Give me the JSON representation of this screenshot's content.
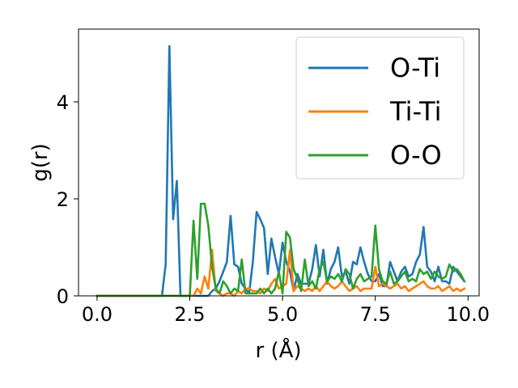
{
  "chart_data": {
    "type": "line",
    "title": "",
    "xlabel": "r (Å)",
    "ylabel": "g(r)",
    "xlim": [
      -0.5,
      10.3
    ],
    "ylim": [
      0,
      5.5
    ],
    "xticks": [
      0.0,
      2.5,
      5.0,
      7.5,
      10.0
    ],
    "xtick_labels": [
      "0.0",
      "2.5",
      "5.0",
      "7.5",
      "10.0"
    ],
    "yticks": [
      0,
      2,
      4
    ],
    "ytick_labels": [
      "0",
      "2",
      "4"
    ],
    "grid": false,
    "legend_position": "top-right",
    "series": [
      {
        "name": "O-Ti",
        "color": "#1f77b4",
        "points": [
          [
            0.0,
            0.0
          ],
          [
            1.75,
            0.0
          ],
          [
            1.85,
            0.65
          ],
          [
            1.95,
            5.15
          ],
          [
            2.05,
            1.58
          ],
          [
            2.15,
            2.37
          ],
          [
            2.25,
            0.0
          ],
          [
            3.0,
            0.0
          ],
          [
            3.1,
            0.1
          ],
          [
            3.2,
            0.15
          ],
          [
            3.3,
            0.3
          ],
          [
            3.4,
            0.5
          ],
          [
            3.5,
            0.7
          ],
          [
            3.6,
            1.65
          ],
          [
            3.7,
            0.65
          ],
          [
            3.8,
            0.6
          ],
          [
            3.9,
            0.25
          ],
          [
            4.0,
            0.15
          ],
          [
            4.1,
            0.05
          ],
          [
            4.2,
            0.7
          ],
          [
            4.3,
            1.73
          ],
          [
            4.4,
            1.58
          ],
          [
            4.5,
            1.4
          ],
          [
            4.6,
            0.45
          ],
          [
            4.7,
            1.18
          ],
          [
            4.8,
            0.8
          ],
          [
            4.9,
            0.45
          ],
          [
            5.0,
            1.1
          ],
          [
            5.1,
            0.7
          ],
          [
            5.2,
            0.5
          ],
          [
            5.3,
            0.1
          ],
          [
            5.4,
            0.45
          ],
          [
            5.5,
            0.25
          ],
          [
            5.6,
            0.25
          ],
          [
            5.7,
            0.25
          ],
          [
            5.8,
            0.55
          ],
          [
            5.9,
            1.05
          ],
          [
            6.0,
            0.4
          ],
          [
            6.1,
            0.95
          ],
          [
            6.2,
            0.25
          ],
          [
            6.3,
            0.55
          ],
          [
            6.4,
            0.7
          ],
          [
            6.5,
            1.0
          ],
          [
            6.6,
            0.4
          ],
          [
            6.7,
            0.5
          ],
          [
            6.8,
            0.25
          ],
          [
            6.9,
            0.7
          ],
          [
            7.0,
            0.65
          ],
          [
            7.1,
            1.0
          ],
          [
            7.2,
            0.7
          ],
          [
            7.3,
            0.45
          ],
          [
            7.4,
            0.3
          ],
          [
            7.5,
            0.3
          ],
          [
            7.6,
            0.45
          ],
          [
            7.7,
            0.2
          ],
          [
            7.8,
            0.2
          ],
          [
            7.9,
            0.7
          ],
          [
            8.0,
            0.5
          ],
          [
            8.1,
            0.3
          ],
          [
            8.2,
            0.5
          ],
          [
            8.3,
            0.6
          ],
          [
            8.4,
            0.4
          ],
          [
            8.5,
            0.45
          ],
          [
            8.6,
            0.7
          ],
          [
            8.7,
            0.85
          ],
          [
            8.8,
            1.42
          ],
          [
            8.9,
            0.6
          ],
          [
            9.0,
            0.5
          ],
          [
            9.1,
            0.3
          ],
          [
            9.2,
            0.6
          ],
          [
            9.3,
            0.3
          ],
          [
            9.4,
            0.3
          ],
          [
            9.5,
            0.25
          ],
          [
            9.6,
            0.6
          ],
          [
            9.7,
            0.5
          ],
          [
            9.8,
            0.4
          ],
          [
            9.9,
            0.3
          ]
        ]
      },
      {
        "name": "Ti-Ti",
        "color": "#ff7f0e",
        "points": [
          [
            0.0,
            0.0
          ],
          [
            2.6,
            0.0
          ],
          [
            2.7,
            0.15
          ],
          [
            2.8,
            0.05
          ],
          [
            2.9,
            0.4
          ],
          [
            3.0,
            0.15
          ],
          [
            3.1,
            0.95
          ],
          [
            3.2,
            0.1
          ],
          [
            3.3,
            0.05
          ],
          [
            3.4,
            0.0
          ],
          [
            3.5,
            0.05
          ],
          [
            3.6,
            0.05
          ],
          [
            3.7,
            0.0
          ],
          [
            3.8,
            0.1
          ],
          [
            3.9,
            0.05
          ],
          [
            4.0,
            0.15
          ],
          [
            4.1,
            0.15
          ],
          [
            4.2,
            0.1
          ],
          [
            4.3,
            0.1
          ],
          [
            4.4,
            0.05
          ],
          [
            4.5,
            0.15
          ],
          [
            4.6,
            0.1
          ],
          [
            4.7,
            0.25
          ],
          [
            4.8,
            0.35
          ],
          [
            4.9,
            0.15
          ],
          [
            5.0,
            0.2
          ],
          [
            5.1,
            0.25
          ],
          [
            5.2,
            0.95
          ],
          [
            5.3,
            0.1
          ],
          [
            5.4,
            0.2
          ],
          [
            5.5,
            0.15
          ],
          [
            5.6,
            0.1
          ],
          [
            5.7,
            0.15
          ],
          [
            5.8,
            0.1
          ],
          [
            5.9,
            0.2
          ],
          [
            6.0,
            0.1
          ],
          [
            6.1,
            0.2
          ],
          [
            6.2,
            0.3
          ],
          [
            6.3,
            0.2
          ],
          [
            6.4,
            0.15
          ],
          [
            6.5,
            0.2
          ],
          [
            6.6,
            0.3
          ],
          [
            6.7,
            0.2
          ],
          [
            6.8,
            0.1
          ],
          [
            6.9,
            0.15
          ],
          [
            7.0,
            0.2
          ],
          [
            7.1,
            0.1
          ],
          [
            7.2,
            0.15
          ],
          [
            7.3,
            0.15
          ],
          [
            7.4,
            0.15
          ],
          [
            7.5,
            0.6
          ],
          [
            7.6,
            0.2
          ],
          [
            7.7,
            0.25
          ],
          [
            7.8,
            0.2
          ],
          [
            7.9,
            0.15
          ],
          [
            8.0,
            0.2
          ],
          [
            8.1,
            0.25
          ],
          [
            8.2,
            0.15
          ],
          [
            8.3,
            0.2
          ],
          [
            8.4,
            0.1
          ],
          [
            8.5,
            0.15
          ],
          [
            8.6,
            0.2
          ],
          [
            8.7,
            0.25
          ],
          [
            8.8,
            0.3
          ],
          [
            8.9,
            0.2
          ],
          [
            9.0,
            0.15
          ],
          [
            9.1,
            0.15
          ],
          [
            9.2,
            0.2
          ],
          [
            9.3,
            0.1
          ],
          [
            9.4,
            0.15
          ],
          [
            9.5,
            0.2
          ],
          [
            9.6,
            0.1
          ],
          [
            9.7,
            0.15
          ],
          [
            9.8,
            0.1
          ],
          [
            9.9,
            0.15
          ]
        ]
      },
      {
        "name": "O-O",
        "color": "#2ca02c",
        "points": [
          [
            0.0,
            0.0
          ],
          [
            2.5,
            0.0
          ],
          [
            2.6,
            1.55
          ],
          [
            2.7,
            0.35
          ],
          [
            2.8,
            1.9
          ],
          [
            2.9,
            1.9
          ],
          [
            3.0,
            1.45
          ],
          [
            3.1,
            0.6
          ],
          [
            3.2,
            0.15
          ],
          [
            3.3,
            0.05
          ],
          [
            3.4,
            0.3
          ],
          [
            3.5,
            0.2
          ],
          [
            3.6,
            0.05
          ],
          [
            3.7,
            0.15
          ],
          [
            3.8,
            0.1
          ],
          [
            3.9,
            0.75
          ],
          [
            4.0,
            0.05
          ],
          [
            4.1,
            0.05
          ],
          [
            4.2,
            0.05
          ],
          [
            4.3,
            0.05
          ],
          [
            4.4,
            0.15
          ],
          [
            4.5,
            0.05
          ],
          [
            4.6,
            0.15
          ],
          [
            4.7,
            0.05
          ],
          [
            4.8,
            0.15
          ],
          [
            4.9,
            0.5
          ],
          [
            5.0,
            0.05
          ],
          [
            5.1,
            1.32
          ],
          [
            5.2,
            1.2
          ],
          [
            5.3,
            0.55
          ],
          [
            5.4,
            0.35
          ],
          [
            5.5,
            0.1
          ],
          [
            5.6,
            0.75
          ],
          [
            5.7,
            0.2
          ],
          [
            5.8,
            0.3
          ],
          [
            5.9,
            0.15
          ],
          [
            6.0,
            0.55
          ],
          [
            6.1,
            0.7
          ],
          [
            6.2,
            0.3
          ],
          [
            6.3,
            0.4
          ],
          [
            6.4,
            0.35
          ],
          [
            6.5,
            0.45
          ],
          [
            6.6,
            0.3
          ],
          [
            6.7,
            0.55
          ],
          [
            6.8,
            0.45
          ],
          [
            6.9,
            0.15
          ],
          [
            7.0,
            0.35
          ],
          [
            7.1,
            0.45
          ],
          [
            7.2,
            0.3
          ],
          [
            7.3,
            0.35
          ],
          [
            7.4,
            0.4
          ],
          [
            7.5,
            1.45
          ],
          [
            7.6,
            0.55
          ],
          [
            7.7,
            0.3
          ],
          [
            7.8,
            0.25
          ],
          [
            7.9,
            0.5
          ],
          [
            8.0,
            0.25
          ],
          [
            8.1,
            0.3
          ],
          [
            8.2,
            0.4
          ],
          [
            8.3,
            0.5
          ],
          [
            8.4,
            0.3
          ],
          [
            8.5,
            0.35
          ],
          [
            8.6,
            0.3
          ],
          [
            8.7,
            0.55
          ],
          [
            8.8,
            0.45
          ],
          [
            8.9,
            0.5
          ],
          [
            9.0,
            0.35
          ],
          [
            9.1,
            0.5
          ],
          [
            9.2,
            0.4
          ],
          [
            9.3,
            0.35
          ],
          [
            9.4,
            0.4
          ],
          [
            9.5,
            0.65
          ],
          [
            9.6,
            0.5
          ],
          [
            9.7,
            0.55
          ],
          [
            9.8,
            0.45
          ],
          [
            9.9,
            0.3
          ]
        ]
      }
    ]
  }
}
